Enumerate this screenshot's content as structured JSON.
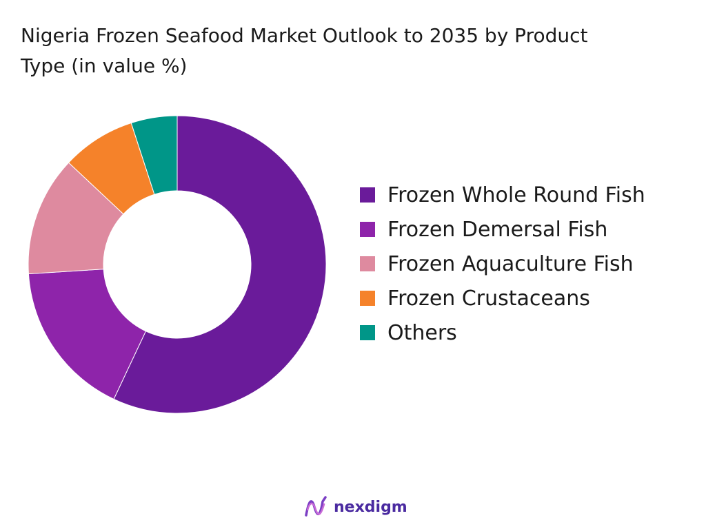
{
  "title_line1": "Nigeria Frozen Seafood Market Outlook to 2035 by Product",
  "title_line2": "Type (in value %)",
  "brand": "nexdigm",
  "chart_data": {
    "type": "pie",
    "variant": "donut",
    "title": "Nigeria Frozen Seafood Market Outlook to 2035 by Product Type (in value %)",
    "categories": [
      "Frozen Whole Round Fish",
      "Frozen Demersal Fish",
      "Frozen Aquaculture Fish",
      "Frozen Crustaceans",
      "Others"
    ],
    "values": [
      57,
      17,
      13,
      8,
      5
    ],
    "colors": [
      "#6a1b9a",
      "#8e24aa",
      "#de8a9f",
      "#f5822a",
      "#009688"
    ],
    "start_angle": "12 o'clock",
    "direction": "clockwise",
    "legend_position": "right"
  }
}
